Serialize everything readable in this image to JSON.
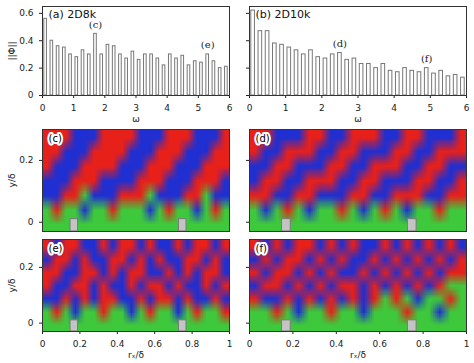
{
  "chart_data": [
    {
      "type": "bar",
      "title": "(a) 2D8k",
      "x_label": "ω",
      "y_label": "||Φ||",
      "color": "#777777",
      "x": [
        0,
        0.2,
        0.4,
        0.6,
        0.8,
        1.0,
        1.2,
        1.4,
        1.6,
        1.8,
        2.0,
        2.2,
        2.4,
        2.6,
        2.8,
        3.0,
        3.2,
        3.4,
        3.6,
        3.8,
        4.0,
        4.2,
        4.4,
        4.6,
        4.8,
        5.0,
        5.2,
        5.4,
        5.6,
        5.8
      ],
      "values": [
        0.56,
        0.4,
        0.36,
        0.35,
        0.3,
        0.28,
        0.33,
        0.3,
        0.45,
        0.3,
        0.37,
        0.36,
        0.3,
        0.27,
        0.32,
        0.26,
        0.3,
        0.3,
        0.27,
        0.22,
        0.3,
        0.27,
        0.29,
        0.22,
        0.25,
        0.24,
        0.3,
        0.25,
        0.2,
        0.21
      ],
      "xlim": [
        0,
        6
      ],
      "xticks": [
        0,
        1,
        2,
        3,
        4,
        5,
        6
      ],
      "ylim": [
        0,
        0.65
      ],
      "yticks": [
        0,
        0.2,
        0.4,
        0.6
      ],
      "annotations": [
        {
          "text": "(c)",
          "x": 1.7,
          "y": 0.52
        },
        {
          "text": "(e)",
          "x": 5.3,
          "y": 0.37
        }
      ]
    },
    {
      "type": "bar",
      "title": "(b) 2D10k",
      "x_label": "ω",
      "color": "#777777",
      "tick_labels": "x",
      "x": [
        0,
        0.2,
        0.4,
        0.6,
        0.8,
        1.0,
        1.2,
        1.4,
        1.6,
        1.8,
        2.0,
        2.2,
        2.4,
        2.6,
        2.8,
        3.0,
        3.2,
        3.4,
        3.6,
        3.8,
        4.0,
        4.2,
        4.4,
        4.6,
        4.8,
        5.0,
        5.2,
        5.4,
        5.6,
        5.8
      ],
      "values": [
        0.62,
        0.47,
        0.47,
        0.38,
        0.37,
        0.35,
        0.33,
        0.3,
        0.33,
        0.28,
        0.27,
        0.3,
        0.31,
        0.26,
        0.27,
        0.23,
        0.23,
        0.2,
        0.23,
        0.18,
        0.17,
        0.2,
        0.18,
        0.17,
        0.2,
        0.16,
        0.18,
        0.14,
        0.15,
        0.13
      ],
      "xlim": [
        0,
        6
      ],
      "xticks": [
        0,
        1,
        2,
        3,
        4,
        5,
        6
      ],
      "ylim": [
        0,
        0.65
      ],
      "yticks": [
        0,
        0.2,
        0.4,
        0.6
      ],
      "annotations": [
        {
          "text": "(d)",
          "x": 2.5,
          "y": 0.38
        },
        {
          "text": "(f)",
          "x": 4.9,
          "y": 0.27
        }
      ]
    },
    {
      "type": "heatmap",
      "title": "(c)",
      "y_label": "y/δ",
      "tick_labels": "y",
      "xlim": [
        0,
        1
      ],
      "xticks": [
        0,
        0.2,
        0.4,
        0.6,
        0.8,
        1
      ],
      "ylim": [
        -0.03,
        0.3
      ],
      "yticks": [
        0,
        0.2
      ],
      "zlim": [
        -1,
        1
      ],
      "colors": [
        "#1f2fd2",
        "#1fc6e6",
        "#3ec93c",
        "#f0e020",
        "#e8201a"
      ],
      "blocks": [
        {
          "x1": 0.15,
          "x2": 0.19,
          "y1": -0.03,
          "y2": 0.01
        },
        {
          "x1": 0.73,
          "x2": 0.77,
          "y1": -0.03,
          "y2": 0.01
        }
      ],
      "cells": [
        [
          1,
          1,
          1,
          -1,
          -1,
          -1,
          1,
          1,
          1,
          1,
          -1,
          -1,
          -1,
          1,
          1,
          1,
          -1,
          -1,
          -1,
          1
        ],
        [
          1,
          1,
          -1,
          -1,
          -1,
          1,
          1,
          1,
          1,
          -1,
          -1,
          -1,
          1,
          1,
          1,
          -1,
          -1,
          -1,
          1,
          1
        ],
        [
          1,
          -1,
          -1,
          -1,
          1,
          1,
          1,
          1,
          -1,
          -1,
          -1,
          1,
          1,
          1,
          -1,
          -1,
          -1,
          1,
          1,
          1
        ],
        [
          -1,
          -1,
          -1,
          1,
          1,
          1,
          -1,
          -1,
          -1,
          -1,
          1,
          1,
          1,
          -1,
          -1,
          -1,
          1,
          1,
          1,
          -1
        ],
        [
          -1,
          -1,
          1,
          1,
          0,
          -1,
          -1,
          -1,
          1,
          1,
          1,
          0,
          -1,
          -1,
          -1,
          1,
          1,
          0,
          -1,
          -1
        ],
        [
          0,
          1,
          0,
          0,
          -1,
          0,
          0,
          1,
          0,
          0,
          0,
          -1,
          0,
          1,
          0,
          0,
          -1,
          0,
          1,
          0
        ],
        [
          0,
          0,
          0,
          0,
          0,
          0,
          0,
          0,
          0,
          0,
          0,
          0,
          0,
          0,
          0,
          0,
          0,
          0,
          0,
          0
        ]
      ]
    },
    {
      "type": "heatmap",
      "title": "(d)",
      "tick_labels": false,
      "xlim": [
        0,
        1
      ],
      "xticks": [
        0,
        0.2,
        0.4,
        0.6,
        0.8,
        1
      ],
      "ylim": [
        -0.03,
        0.3
      ],
      "yticks": [
        0,
        0.2
      ],
      "zlim": [
        -1,
        1
      ],
      "colors": [
        "#1f2fd2",
        "#1fc6e6",
        "#3ec93c",
        "#f0e020",
        "#e8201a"
      ],
      "blocks": [
        {
          "x1": 0.15,
          "x2": 0.19,
          "y1": -0.03,
          "y2": 0.01
        },
        {
          "x1": 0.73,
          "x2": 0.77,
          "y1": -0.03,
          "y2": 0.01
        }
      ],
      "cells": [
        [
          1,
          1,
          -1,
          -1,
          -1,
          1,
          1,
          -1,
          -1,
          1,
          1,
          1,
          -1,
          -1,
          1,
          1,
          -1,
          -1,
          -1,
          1
        ],
        [
          1,
          -1,
          -1,
          1,
          1,
          1,
          -1,
          -1,
          1,
          1,
          -1,
          -1,
          -1,
          1,
          1,
          -1,
          -1,
          1,
          1,
          1
        ],
        [
          -1,
          -1,
          1,
          1,
          -1,
          -1,
          -1,
          1,
          1,
          -1,
          -1,
          1,
          1,
          1,
          -1,
          -1,
          1,
          1,
          -1,
          -1
        ],
        [
          -1,
          1,
          1,
          -1,
          -1,
          1,
          1,
          1,
          -1,
          -1,
          1,
          1,
          -1,
          -1,
          -1,
          1,
          1,
          -1,
          -1,
          1
        ],
        [
          1,
          1,
          -1,
          -1,
          1,
          1,
          -1,
          -1,
          -1,
          1,
          1,
          -1,
          -1,
          1,
          1,
          1,
          -1,
          -1,
          1,
          1
        ],
        [
          0,
          -1,
          0,
          1,
          0,
          -1,
          0,
          0,
          1,
          0,
          -1,
          0,
          1,
          0,
          -1,
          0,
          0,
          1,
          0,
          0
        ],
        [
          0,
          0,
          0,
          0,
          0,
          0,
          0,
          0,
          0,
          0,
          0,
          0,
          0,
          0,
          0,
          0,
          0,
          0,
          0,
          0
        ]
      ]
    },
    {
      "type": "heatmap",
      "title": "(e)",
      "x_label": "rₓ/δ",
      "y_label": "y/δ",
      "xlim": [
        0,
        1
      ],
      "xticks": [
        0,
        0.2,
        0.4,
        0.6,
        0.8,
        1
      ],
      "ylim": [
        -0.03,
        0.3
      ],
      "yticks": [
        0,
        0.2
      ],
      "zlim": [
        -1,
        1
      ],
      "colors": [
        "#1f2fd2",
        "#1fc6e6",
        "#3ec93c",
        "#f0e020",
        "#e8201a"
      ],
      "blocks": [
        {
          "x1": 0.15,
          "x2": 0.19,
          "y1": -0.03,
          "y2": 0.01
        },
        {
          "x1": 0.73,
          "x2": 0.77,
          "y1": -0.03,
          "y2": 0.01
        }
      ],
      "cells": [
        [
          1,
          -1,
          1,
          1,
          -1,
          -1,
          1,
          -1,
          1,
          1,
          -1,
          1,
          -1,
          -1,
          1,
          -1,
          1,
          1,
          -1,
          1
        ],
        [
          -1,
          1,
          1,
          -1,
          1,
          -1,
          -1,
          1,
          1,
          -1,
          1,
          -1,
          1,
          -1,
          -1,
          1,
          1,
          -1,
          1,
          -1
        ],
        [
          1,
          1,
          -1,
          -1,
          1,
          1,
          -1,
          1,
          -1,
          1,
          1,
          -1,
          -1,
          1,
          -1,
          1,
          -1,
          1,
          1,
          -1
        ],
        [
          1,
          -1,
          -1,
          1,
          1,
          -1,
          1,
          -1,
          -1,
          1,
          -1,
          1,
          1,
          -1,
          1,
          -1,
          -1,
          1,
          -1,
          1
        ],
        [
          -1,
          -1,
          1,
          -1,
          1,
          -1,
          1,
          1,
          -1,
          -1,
          1,
          -1,
          1,
          1,
          -1,
          1,
          -1,
          -1,
          1,
          -1
        ],
        [
          0,
          1,
          0,
          -1,
          0,
          0,
          1,
          0,
          0,
          -1,
          0,
          1,
          0,
          0,
          -1,
          0,
          1,
          0,
          0,
          1
        ],
        [
          0,
          0,
          0,
          0,
          0,
          0,
          0,
          0,
          0,
          0,
          0,
          0,
          0,
          0,
          0,
          0,
          0,
          0,
          0,
          0
        ]
      ]
    },
    {
      "type": "heatmap",
      "title": "(f)",
      "x_label": "rₓ/δ",
      "tick_labels": "x",
      "xlim": [
        0,
        1
      ],
      "xticks": [
        0,
        0.2,
        0.4,
        0.6,
        0.8,
        1
      ],
      "ylim": [
        -0.03,
        0.3
      ],
      "yticks": [
        0,
        0.2
      ],
      "zlim": [
        -1,
        1
      ],
      "colors": [
        "#1f2fd2",
        "#1fc6e6",
        "#3ec93c",
        "#f0e020",
        "#e8201a"
      ],
      "blocks": [
        {
          "x1": 0.15,
          "x2": 0.19,
          "y1": -0.03,
          "y2": 0.01
        },
        {
          "x1": 0.73,
          "x2": 0.77,
          "y1": -0.03,
          "y2": 0.01
        }
      ],
      "cells": [
        [
          1,
          -1,
          1,
          -1,
          1,
          1,
          -1,
          1,
          -1,
          1,
          -1,
          -1,
          1,
          -1,
          1,
          -1,
          1,
          -1,
          1,
          -1
        ],
        [
          -1,
          1,
          -1,
          1,
          1,
          -1,
          1,
          -1,
          1,
          -1,
          -1,
          1,
          -1,
          1,
          -1,
          1,
          -1,
          1,
          -1,
          1
        ],
        [
          1,
          -1,
          1,
          1,
          -1,
          1,
          -1,
          1,
          -1,
          -1,
          1,
          -1,
          1,
          -1,
          1,
          -1,
          1,
          -1,
          1,
          1
        ],
        [
          -1,
          1,
          1,
          -1,
          1,
          -1,
          1,
          -1,
          1,
          1,
          -1,
          1,
          -1,
          1,
          -1,
          1,
          -1,
          1,
          0,
          0
        ],
        [
          1,
          -1,
          -1,
          1,
          -1,
          1,
          -1,
          1,
          -1,
          1,
          -1,
          1,
          0,
          1,
          0,
          -1,
          0,
          0,
          1,
          0
        ],
        [
          0,
          0,
          1,
          0,
          -1,
          0,
          0,
          1,
          0,
          0,
          -1,
          0,
          0,
          0,
          1,
          0,
          0,
          -1,
          0,
          0
        ],
        [
          0,
          0,
          0,
          0,
          0,
          0,
          0,
          0,
          0,
          0,
          0,
          0,
          0,
          0,
          0,
          0,
          0,
          0,
          0,
          0
        ]
      ]
    }
  ]
}
